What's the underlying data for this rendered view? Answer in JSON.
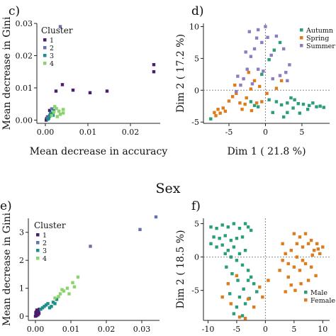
{
  "section_title": "Sex",
  "chart_data": [
    {
      "panel": "c)",
      "type": "scatter",
      "xlabel": "Mean decrease in accuracy",
      "ylabel": "Mean decrease in Gini",
      "xlim": [
        -0.002,
        0.027
      ],
      "ylim": [
        -0.001,
        0.03
      ],
      "xticks": [
        "0.00",
        "0.01",
        "0.02"
      ],
      "xtick_values": [
        0,
        0.01,
        0.02
      ],
      "yticks": [
        "0.00",
        "0.01",
        "0.02",
        "0.03"
      ],
      "ytick_values": [
        0,
        0.01,
        0.02,
        0.03
      ],
      "legend": {
        "title": "Cluster",
        "labels": [
          "1",
          "2",
          "3",
          "4"
        ],
        "placement": "top-left"
      },
      "series": [
        {
          "name": "1",
          "color": "#4b1d6e",
          "points": [
            [
              0.0255,
              0.0172
            ],
            [
              0.0255,
              0.015
            ],
            [
              0.0145,
              0.009
            ],
            [
              0.0105,
              0.0085
            ],
            [
              0.0065,
              0.0093
            ],
            [
              0.004,
              0.011
            ],
            [
              0.0025,
              0.009
            ],
            [
              0.001,
              0.003
            ],
            [
              0.0005,
              0.001
            ],
            [
              0.0002,
              0.0
            ],
            [
              0.0003,
              0.0005
            ]
          ]
        },
        {
          "name": "2",
          "color": "#6a6fb0",
          "points": [
            [
              0.0035,
              0.029
            ],
            [
              0.0015,
              0.0035
            ],
            [
              0.001,
              0.0015
            ],
            [
              0.0005,
              0.0008
            ]
          ]
        },
        {
          "name": "3",
          "color": "#1f8e8a",
          "points": [
            [
              0.002,
              0.003
            ],
            [
              0.0015,
              0.002
            ],
            [
              0.001,
              0.0012
            ],
            [
              0.0008,
              0.0006
            ],
            [
              0.0012,
              0.0022
            ],
            [
              0.0018,
              0.0015
            ],
            [
              0.0006,
              0.0003
            ]
          ]
        },
        {
          "name": "4",
          "color": "#8bd36b",
          "points": [
            [
              0.0042,
              0.0033
            ],
            [
              0.0042,
              0.0022
            ],
            [
              0.0032,
              0.0028
            ],
            [
              0.0026,
              0.0036
            ],
            [
              0.002,
              0.0025
            ],
            [
              0.0015,
              0.0014
            ],
            [
              0.0035,
              0.0018
            ],
            [
              0.0022,
              0.0042
            ],
            [
              0.0028,
              0.0011
            ]
          ]
        }
      ]
    },
    {
      "panel": "d)",
      "type": "scatter",
      "xlabel": "Dim 1 ( 21.8 %)",
      "ylabel": "Dim 2 ( 17.2 %)",
      "xlim": [
        -8.5,
        8.8
      ],
      "ylim": [
        -5.2,
        10.5
      ],
      "xticks": [
        "-5",
        "0",
        "5"
      ],
      "xtick_values": [
        -5,
        0,
        5
      ],
      "yticks": [
        "-5",
        "0",
        "5",
        "10"
      ],
      "ytick_values": [
        -5,
        0,
        5,
        10
      ],
      "grid": "dashed lines at x=0 and y=0",
      "legend": {
        "labels": [
          "Autumn",
          "Spring",
          "Summer"
        ],
        "placement": "top-right"
      },
      "series": [
        {
          "name": "Autumn",
          "color": "#2a9d7a",
          "points": [
            [
              -7.5,
              -4.5
            ],
            [
              8,
              -2.7
            ],
            [
              7,
              -2.6
            ],
            [
              6,
              -2.4
            ],
            [
              5.2,
              -2.2
            ],
            [
              4.5,
              -2.1
            ],
            [
              3.8,
              -2.8
            ],
            [
              3,
              -3.5
            ],
            [
              2.2,
              -2.3
            ],
            [
              1.5,
              -1.8
            ],
            [
              4.7,
              -3.6
            ],
            [
              -1,
              -2.6
            ],
            [
              -1.5,
              -2.4
            ],
            [
              -2,
              -1.8
            ],
            [
              0.5,
              -1.5
            ],
            [
              6.5,
              -2
            ],
            [
              7.5,
              -2.5
            ],
            [
              2,
              7.5
            ],
            [
              1.2,
              6.3
            ],
            [
              0.5,
              4.8
            ],
            [
              -0.5,
              2.5
            ],
            [
              3,
              -2
            ],
            [
              4,
              -1.5
            ],
            [
              5.8,
              -3
            ],
            [
              1,
              -3.5
            ],
            [
              2.5,
              -4.2
            ],
            [
              3.5,
              -1.2
            ]
          ]
        },
        {
          "name": "Spring",
          "color": "#e07b1c",
          "points": [
            [
              -7,
              -3.5
            ],
            [
              -6.8,
              -4
            ],
            [
              -6.2,
              -3.6
            ],
            [
              -5.8,
              -2.8
            ],
            [
              -5,
              -1.7
            ],
            [
              -4.5,
              -1
            ],
            [
              -4,
              -0.5
            ],
            [
              -3.2,
              -3
            ],
            [
              -2.6,
              -1.2
            ],
            [
              -2,
              0.2
            ],
            [
              -1.5,
              1.5
            ],
            [
              -1.2,
              -2
            ],
            [
              -0.5,
              -1.8
            ],
            [
              1.5,
              0.3
            ],
            [
              2.2,
              1.5
            ],
            [
              -4.2,
              0.8
            ],
            [
              -2.8,
              -2.2
            ],
            [
              -1.9,
              -3.2
            ],
            [
              -3.5,
              -2
            ],
            [
              -6.5,
              -3
            ],
            [
              -5.5,
              -3.3
            ],
            [
              -0.8,
              0.6
            ],
            [
              0.2,
              -0.5
            ],
            [
              -2.3,
              2.8
            ]
          ]
        },
        {
          "name": "Summer",
          "color": "#8c7dc3",
          "points": [
            [
              0,
              10
            ],
            [
              0.3,
              8.3
            ],
            [
              -0.5,
              7.5
            ],
            [
              -1.2,
              8.2
            ],
            [
              -1.5,
              6.5
            ],
            [
              -2,
              5.3
            ],
            [
              -2.5,
              3.3
            ],
            [
              -3,
              1.8
            ],
            [
              -3.4,
              0.8
            ],
            [
              -4,
              -0.2
            ],
            [
              -1,
              3.3
            ],
            [
              -0.3,
              3
            ],
            [
              1,
              1.8
            ],
            [
              2,
              2.3
            ],
            [
              2.8,
              2.8
            ],
            [
              3.3,
              4
            ],
            [
              1.5,
              8.5
            ],
            [
              -2.2,
              9.2
            ],
            [
              -1,
              9.5
            ],
            [
              0.8,
              5.5
            ],
            [
              2.5,
              6.5
            ],
            [
              -1.8,
              1
            ],
            [
              3,
              1.5
            ],
            [
              -3.8,
              2.2
            ],
            [
              -2.7,
              6
            ]
          ]
        }
      ]
    },
    {
      "panel": "e)",
      "type": "scatter",
      "xlabel": "",
      "ylabel": "Mean decrease in Gini",
      "xlim": [
        -0.002,
        0.035
      ],
      "ylim": [
        -0.15,
        3.5
      ],
      "xticks": [
        "0.00",
        "0.01",
        "0.02",
        "0.03"
      ],
      "xtick_values": [
        0,
        0.01,
        0.02,
        0.03
      ],
      "yticks": [
        "0",
        "1",
        "2",
        "3"
      ],
      "ytick_values": [
        0,
        1,
        2,
        3
      ],
      "legend": {
        "title": "Cluster",
        "labels": [
          "1",
          "2",
          "3",
          "4"
        ],
        "placement": "top-left"
      },
      "series": [
        {
          "name": "1",
          "color": "#4b1d6e",
          "points": [
            [
              0,
              0
            ],
            [
              0.0002,
              0.05
            ],
            [
              0.0004,
              0.1
            ],
            [
              0.0006,
              0.15
            ],
            [
              0.0008,
              0.2
            ],
            [
              0.001,
              0.1
            ],
            [
              0.0003,
              0.02
            ],
            [
              0.0005,
              0.08
            ],
            [
              0.0007,
              0.05
            ],
            [
              0.0001,
              0.12
            ],
            [
              0.0009,
              0.18
            ],
            [
              0.0011,
              0.25
            ],
            [
              0.0004,
              0.22
            ],
            [
              0.0002,
              0.15
            ]
          ]
        },
        {
          "name": "2",
          "color": "#6a6fb0",
          "points": [
            [
              0.034,
              3.55
            ],
            [
              0.0295,
              3.1
            ],
            [
              0.0155,
              2.5
            ]
          ]
        },
        {
          "name": "3",
          "color": "#1f8e8a",
          "points": [
            [
              0.002,
              0.3
            ],
            [
              0.0035,
              0.45
            ],
            [
              0.005,
              0.5
            ],
            [
              0.006,
              0.6
            ],
            [
              0.0045,
              0.35
            ],
            [
              0.003,
              0.4
            ],
            [
              0.0015,
              0.25
            ],
            [
              0.0025,
              0.35
            ],
            [
              0.004,
              0.3
            ],
            [
              0.0055,
              0.45
            ]
          ]
        },
        {
          "name": "4",
          "color": "#8bd36b",
          "points": [
            [
              0.012,
              1.4
            ],
            [
              0.0105,
              1.2
            ],
            [
              0.009,
              1.0
            ],
            [
              0.008,
              0.9
            ],
            [
              0.007,
              0.8
            ],
            [
              0.0065,
              0.7
            ],
            [
              0.0055,
              0.65
            ],
            [
              0.0095,
              0.8
            ],
            [
              0.0075,
              0.95
            ],
            [
              0.011,
              1.05
            ]
          ]
        }
      ]
    },
    {
      "panel": "f)",
      "type": "scatter",
      "xlabel": "",
      "ylabel": "Dim 2 ( 18.5 %)",
      "xlim": [
        -10.8,
        11.2
      ],
      "ylim": [
        -9.5,
        5.8
      ],
      "xticks": [
        "-10",
        "-5",
        "0",
        "5",
        "10"
      ],
      "xtick_values": [
        -10,
        -5,
        0,
        5,
        10
      ],
      "yticks": [
        "-5",
        "0",
        "5"
      ],
      "ytick_values": [
        -5,
        0,
        5
      ],
      "grid": "dashed lines at x=0 and y=0",
      "legend": {
        "labels": [
          "Male",
          "Female"
        ],
        "placement": "bottom-right"
      },
      "series": [
        {
          "name": "Male",
          "color": "#2a9d7a",
          "points": [
            [
              -9.5,
              4.5
            ],
            [
              -8.5,
              4.3
            ],
            [
              -7.5,
              4.8
            ],
            [
              -6.5,
              4.5
            ],
            [
              -5.5,
              5
            ],
            [
              -4.5,
              4.3
            ],
            [
              -3.5,
              5
            ],
            [
              -3,
              4.5
            ],
            [
              -2.5,
              4
            ],
            [
              -9,
              3
            ],
            [
              -8,
              2.8
            ],
            [
              -7,
              3.2
            ],
            [
              -6,
              2.5
            ],
            [
              -5,
              2.8
            ],
            [
              -4,
              3
            ],
            [
              -9.5,
              2
            ],
            [
              -8.5,
              1.5
            ],
            [
              -7.5,
              1.8
            ],
            [
              -6.5,
              1
            ],
            [
              -5.5,
              1.5
            ],
            [
              -4.5,
              0.5
            ],
            [
              -3.5,
              1
            ],
            [
              -7,
              0.5
            ],
            [
              -6,
              0
            ],
            [
              -5,
              -0.5
            ],
            [
              -4,
              -1.2
            ],
            [
              -3,
              -2
            ],
            [
              -2.5,
              -3
            ],
            [
              -2,
              -4
            ],
            [
              -1.5,
              -5.2
            ],
            [
              -5.8,
              -2.5
            ],
            [
              -4.8,
              -3.5
            ],
            [
              -3.8,
              -4.8
            ],
            [
              -4.5,
              -6
            ],
            [
              -5,
              -7.5
            ],
            [
              -3.5,
              -7
            ],
            [
              -6.2,
              -5.5
            ],
            [
              -2.8,
              -6.2
            ],
            [
              -5.5,
              -8.5
            ],
            [
              -4,
              -8.8
            ],
            [
              -3,
              -3.5
            ],
            [
              -6.8,
              -1.5
            ]
          ]
        },
        {
          "name": "Female",
          "color": "#e07b1c",
          "points": [
            [
              5,
              3.5
            ],
            [
              6,
              3
            ],
            [
              7,
              3.5
            ],
            [
              8,
              2.5
            ],
            [
              9,
              2
            ],
            [
              10,
              1.5
            ],
            [
              8.5,
              1
            ],
            [
              9.5,
              0.5
            ],
            [
              7.5,
              2
            ],
            [
              6.5,
              1.5
            ],
            [
              5.5,
              2
            ],
            [
              4.5,
              1
            ],
            [
              3.5,
              0.5
            ],
            [
              3,
              -0.5
            ],
            [
              4,
              -1
            ],
            [
              5,
              -1.5
            ],
            [
              6,
              -2
            ],
            [
              7,
              -1
            ],
            [
              8,
              -1.5
            ],
            [
              6.5,
              -0.5
            ],
            [
              5.5,
              0
            ],
            [
              4,
              -3
            ],
            [
              4.5,
              -4.2
            ],
            [
              3.5,
              -5.2
            ],
            [
              5.2,
              -5
            ],
            [
              6.2,
              -4
            ],
            [
              7.5,
              -3.5
            ],
            [
              8.8,
              -2.8
            ],
            [
              2.5,
              -2
            ],
            [
              9.2,
              1.2
            ],
            [
              8.2,
              0.3
            ],
            [
              3,
              2
            ],
            [
              -6.5,
              -4
            ],
            [
              -7.5,
              -6
            ],
            [
              -6,
              -7
            ],
            [
              -4.5,
              -9
            ],
            [
              -3.5,
              -9.2
            ],
            [
              -2,
              -7.5
            ],
            [
              -1,
              -4.5
            ],
            [
              0.5,
              -3.5
            ],
            [
              -0.5,
              -6
            ],
            [
              -3,
              -6.3
            ],
            [
              -5,
              -2.8
            ]
          ]
        }
      ]
    }
  ]
}
